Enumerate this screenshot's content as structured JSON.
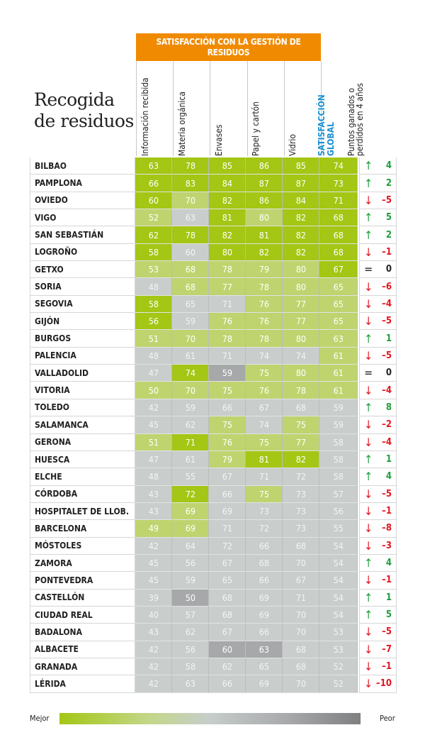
{
  "title_lines": [
    "Recogida",
    "de residuos"
  ],
  "group_header": "SATISFACCIÓN  CON LA GESTIÓN DE RESIDUOS",
  "chart_data": {
    "type": "heatmap",
    "columns": [
      "Información recibida",
      "Materia orgánica",
      "Envases",
      "Papel y cartón",
      "Vidrio",
      "SATISFACCIÓN GLOBAL",
      "Puntos ganados o perdidos en 4 años"
    ],
    "color_scale": {
      "G": "#a4c614",
      "L": "#bfd46f",
      "N": "#c9cecd",
      "D": "#a6a8aa"
    },
    "trend_colors": {
      "up": "#1e9e3a",
      "down": "#e3141e",
      "eq": "#222222"
    },
    "rows": [
      {
        "city": "BILBAO",
        "values": [
          63,
          78,
          85,
          86,
          85,
          74
        ],
        "colors": "GGGGGG",
        "change": "4"
      },
      {
        "city": "PAMPLONA",
        "values": [
          66,
          83,
          84,
          87,
          87,
          73
        ],
        "colors": "GGGGGG",
        "change": "2"
      },
      {
        "city": "OVIEDO",
        "values": [
          60,
          70,
          82,
          86,
          84,
          71
        ],
        "colors": "GLGGGG",
        "change": "–5"
      },
      {
        "city": "VIGO",
        "values": [
          52,
          63,
          81,
          80,
          82,
          68
        ],
        "colors": "LNGLGG",
        "change": "5"
      },
      {
        "city": "SAN SEBASTIÁN",
        "values": [
          62,
          78,
          82,
          81,
          82,
          68
        ],
        "colors": "GGGGGG",
        "change": "2"
      },
      {
        "city": "LOGROÑO",
        "values": [
          58,
          60,
          80,
          82,
          82,
          68
        ],
        "colors": "GNGGGG",
        "change": "–1"
      },
      {
        "city": "GETXO",
        "values": [
          53,
          68,
          78,
          79,
          80,
          67
        ],
        "colors": "LLLLLG",
        "change": "0"
      },
      {
        "city": "SORIA",
        "values": [
          48,
          68,
          77,
          78,
          80,
          65
        ],
        "colors": "NLLLLL",
        "change": "–6"
      },
      {
        "city": "SEGOVIA",
        "values": [
          58,
          65,
          71,
          76,
          77,
          65
        ],
        "colors": "GNNLLL",
        "change": "–4"
      },
      {
        "city": "GIJÓN",
        "values": [
          56,
          59,
          76,
          76,
          77,
          65
        ],
        "colors": "GNLLLL",
        "change": "–5"
      },
      {
        "city": "BURGOS",
        "values": [
          51,
          70,
          78,
          78,
          80,
          63
        ],
        "colors": "LLLLLL",
        "change": "1"
      },
      {
        "city": "PALENCIA",
        "values": [
          48,
          61,
          71,
          74,
          74,
          61
        ],
        "colors": "NNNNNL",
        "change": "–5"
      },
      {
        "city": "VALLADOLID",
        "values": [
          47,
          74,
          59,
          75,
          80,
          61
        ],
        "colors": "NGDLLL",
        "change": "0"
      },
      {
        "city": "VITORIA",
        "values": [
          50,
          70,
          75,
          76,
          78,
          61
        ],
        "colors": "LLLLLL",
        "change": "–4"
      },
      {
        "city": "TOLEDO",
        "values": [
          42,
          59,
          66,
          67,
          68,
          59
        ],
        "colors": "NNNNNN",
        "change": "8"
      },
      {
        "city": "SALAMANCA",
        "values": [
          45,
          62,
          75,
          74,
          75,
          59
        ],
        "colors": "NNLNLN",
        "change": "–2"
      },
      {
        "city": "GERONA",
        "values": [
          51,
          71,
          76,
          75,
          77,
          58
        ],
        "colors": "LGLLLN",
        "change": "–4"
      },
      {
        "city": "HUESCA",
        "values": [
          47,
          61,
          79,
          81,
          82,
          58
        ],
        "colors": "NNLGGN",
        "change": "1"
      },
      {
        "city": "ELCHE",
        "values": [
          48,
          55,
          67,
          71,
          72,
          58
        ],
        "colors": "NNNNNN",
        "change": "4"
      },
      {
        "city": "CÓRDOBA",
        "values": [
          43,
          72,
          66,
          75,
          73,
          57
        ],
        "colors": "NGNLNN",
        "change": "–5"
      },
      {
        "city": "HOSPITALET DE LLOB.",
        "values": [
          43,
          69,
          69,
          73,
          73,
          56
        ],
        "colors": "NLNNNN",
        "change": "–1"
      },
      {
        "city": "BARCELONA",
        "values": [
          49,
          69,
          71,
          72,
          73,
          55
        ],
        "colors": "LLNNNN",
        "change": "–8"
      },
      {
        "city": "MÓSTOLES",
        "values": [
          42,
          64,
          72,
          66,
          68,
          54
        ],
        "colors": "NNNNNN",
        "change": "–3"
      },
      {
        "city": "ZAMORA",
        "values": [
          45,
          56,
          67,
          68,
          70,
          54
        ],
        "colors": "NNNNNN",
        "change": "4"
      },
      {
        "city": "PONTEVEDRA",
        "values": [
          45,
          59,
          65,
          66,
          67,
          54
        ],
        "colors": "NNNNNN",
        "change": "–1"
      },
      {
        "city": "CASTELLÓN",
        "values": [
          39,
          50,
          68,
          69,
          71,
          54
        ],
        "colors": "NDNNNN",
        "change": "1"
      },
      {
        "city": "CIUDAD REAL",
        "values": [
          40,
          57,
          68,
          69,
          70,
          54
        ],
        "colors": "NNNNNN",
        "change": "5"
      },
      {
        "city": "BADALONA",
        "values": [
          43,
          62,
          67,
          66,
          70,
          53
        ],
        "colors": "NNNNNN",
        "change": "–5"
      },
      {
        "city": "ALBACETE",
        "values": [
          42,
          56,
          60,
          63,
          68,
          53
        ],
        "colors": "NNDDNN",
        "change": "–7"
      },
      {
        "city": "GRANADA",
        "values": [
          42,
          58,
          62,
          65,
          68,
          52
        ],
        "colors": "NNNNNN",
        "change": "–1"
      },
      {
        "city": "LÉRIDA",
        "values": [
          42,
          63,
          66,
          69,
          70,
          52
        ],
        "colors": "NNNNNN",
        "change": "–10"
      }
    ],
    "trend_dirs": [
      "up",
      "up",
      "down",
      "up",
      "up",
      "down",
      "eq",
      "down",
      "down",
      "down",
      "up",
      "down",
      "eq",
      "down",
      "up",
      "down",
      "down",
      "up",
      "up",
      "down",
      "down",
      "down",
      "down",
      "up",
      "down",
      "up",
      "up",
      "down",
      "down",
      "down",
      "down"
    ],
    "legend": {
      "best": "Mejor",
      "worst": "Peor"
    }
  }
}
